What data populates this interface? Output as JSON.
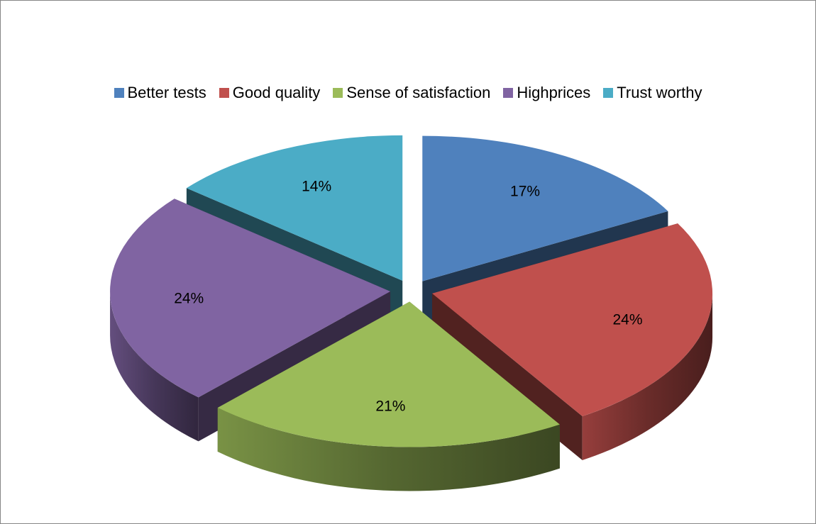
{
  "chart_data": {
    "type": "pie",
    "style": "3d-exploded",
    "legend_position": "top",
    "categories": [
      "Better tests",
      "Good quality",
      "Sense of satisfaction",
      "Highprices",
      "Trust worthy"
    ],
    "values": [
      17,
      24,
      21,
      24,
      14
    ],
    "labels": [
      "17%",
      "24%",
      "21%",
      "24%",
      "14%"
    ],
    "colors": [
      "#4F81BD",
      "#C0504D",
      "#9BBB59",
      "#8064A2",
      "#4BACC6"
    ]
  }
}
